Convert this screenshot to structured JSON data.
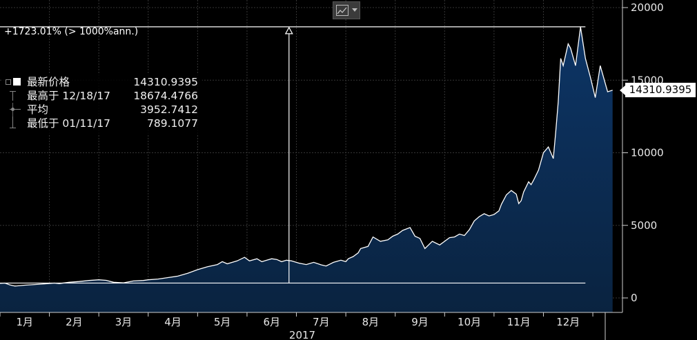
{
  "toolbar": {
    "chart_type_icon": "line-chart-icon",
    "dropdown_icon": "chevron-down-icon"
  },
  "header": {
    "change_label": "+1723.01% (> 1000%ann.)"
  },
  "legend": {
    "items": [
      {
        "icon": "filled-square-icon",
        "label": "最新价格",
        "value": "14310.9395"
      },
      {
        "icon": "high-marker-icon",
        "label": "最高于 12/18/17",
        "value": "18674.4766"
      },
      {
        "icon": "average-marker-icon",
        "label": "平均",
        "value": "3952.7412"
      },
      {
        "icon": "low-marker-icon",
        "label": "最低于 01/11/17",
        "value": "789.1077"
      }
    ]
  },
  "last_price_badge": "14310.9395",
  "colors": {
    "background": "#000000",
    "area_fill_top": "#0d3566",
    "area_fill_bottom": "#0a2340",
    "line": "#ffffff",
    "grid": "#3a3a3a"
  },
  "chart_data": {
    "type": "area",
    "title": "",
    "xlabel": "2017",
    "ylabel": "",
    "ylim": [
      0,
      20000
    ],
    "y_ticks": [
      "20000",
      "15000",
      "10000",
      "5000",
      "0"
    ],
    "x_tick_labels": [
      "1月",
      "2月",
      "3月",
      "4月",
      "5月",
      "6月",
      "7月",
      "8月",
      "9月",
      "10月",
      "11月",
      "12月"
    ],
    "grid": true,
    "y_axis_position": "right",
    "x_start": 0,
    "x_end": 12.6,
    "x": [
      0.0,
      0.1,
      0.2,
      0.3,
      0.35,
      0.5,
      0.7,
      0.9,
      1.1,
      1.2,
      1.4,
      1.6,
      1.8,
      2.0,
      2.15,
      2.3,
      2.5,
      2.7,
      2.9,
      3.0,
      3.2,
      3.4,
      3.6,
      3.8,
      4.0,
      4.2,
      4.4,
      4.5,
      4.6,
      4.8,
      4.95,
      5.05,
      5.2,
      5.3,
      5.4,
      5.5,
      5.6,
      5.7,
      5.8,
      5.9,
      6.05,
      6.2,
      6.35,
      6.5,
      6.6,
      6.75,
      6.9,
      7.0,
      7.05,
      7.15,
      7.25,
      7.3,
      7.45,
      7.55,
      7.7,
      7.85,
      7.95,
      8.05,
      8.15,
      8.3,
      8.4,
      8.5,
      8.6,
      8.75,
      8.9,
      9.0,
      9.1,
      9.2,
      9.3,
      9.4,
      9.5,
      9.6,
      9.7,
      9.8,
      9.9,
      10.0,
      10.1,
      10.15,
      10.25,
      10.35,
      10.45,
      10.5,
      10.55,
      10.6,
      10.7,
      10.75,
      10.8,
      10.9,
      11.0,
      11.1,
      11.2,
      11.25,
      11.3,
      11.35,
      11.4,
      11.5,
      11.55,
      11.65,
      11.75,
      11.85,
      11.95,
      12.05,
      12.15,
      12.3,
      12.4
    ],
    "values": [
      1000,
      1020,
      900,
      820,
      830,
      880,
      920,
      970,
      1020,
      990,
      1080,
      1130,
      1200,
      1250,
      1210,
      1080,
      1040,
      1170,
      1200,
      1250,
      1300,
      1400,
      1500,
      1700,
      1950,
      2150,
      2300,
      2500,
      2350,
      2550,
      2800,
      2550,
      2700,
      2500,
      2600,
      2700,
      2650,
      2500,
      2600,
      2550,
      2400,
      2300,
      2450,
      2280,
      2200,
      2450,
      2600,
      2500,
      2700,
      2850,
      3100,
      3400,
      3550,
      4200,
      3900,
      4000,
      4250,
      4400,
      4650,
      4850,
      4250,
      4100,
      3400,
      3900,
      3650,
      3900,
      4150,
      4200,
      4400,
      4300,
      4700,
      5300,
      5600,
      5800,
      5650,
      5750,
      6000,
      6450,
      7100,
      7400,
      7150,
      6500,
      6700,
      7300,
      8000,
      7800,
      8100,
      8800,
      10000,
      10400,
      9600,
      11500,
      13500,
      16500,
      16000,
      17500,
      17200,
      16000,
      18674,
      16500,
      15200,
      13800,
      16000,
      14200,
      14311
    ],
    "annotations": {
      "first_value": 1024,
      "peak_value": 18674.4766,
      "peak_x": 11.85,
      "marker_x": 5.85,
      "change_text_ref": "header.change_label"
    }
  }
}
